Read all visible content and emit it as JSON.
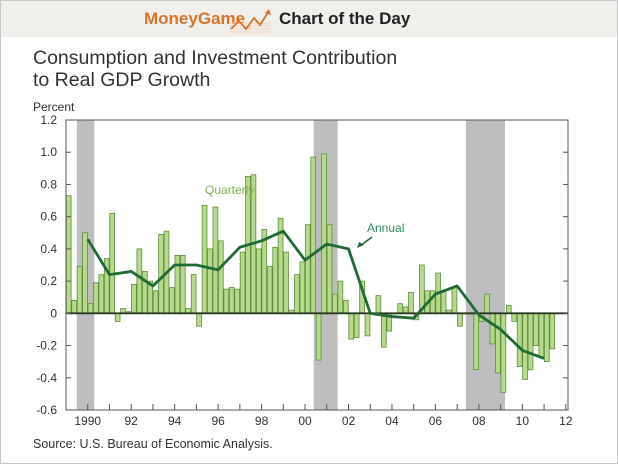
{
  "header": {
    "brand": "MoneyGame",
    "section": "Chart of the Day",
    "brand_color": "#d8732a",
    "logo_icon": "rising-line-chart-icon"
  },
  "footer": {
    "source": "Source: U.S. Bureau of Economic Analysis."
  },
  "chart_data": {
    "type": "bar+line",
    "title_lines": [
      "Consumption and Investment Contribution",
      "to Real GDP Growth"
    ],
    "ylabel": "Percent",
    "ylim": [
      -0.6,
      1.2
    ],
    "yticks": [
      -0.6,
      -0.4,
      -0.2,
      0,
      0.2,
      0.4,
      0.6,
      0.8,
      1.0,
      1.2
    ],
    "ytick_labels": [
      "-0.6",
      "-0.4",
      "-0.2",
      "0",
      "0.2",
      "0.4",
      "0.6",
      "0.8",
      "1.0",
      "1.2"
    ],
    "xlim": [
      1989,
      2012.1
    ],
    "xtick_years": [
      1990,
      1991,
      1992,
      1993,
      1994,
      1995,
      1996,
      1997,
      1998,
      1999,
      2000,
      2001,
      2002,
      2003,
      2004,
      2005,
      2006,
      2007,
      2008,
      2009,
      2010,
      2011,
      2012
    ],
    "xtick_labels": [
      {
        "year": 1990,
        "label": "1990"
      },
      {
        "year": 1992,
        "label": "92"
      },
      {
        "year": 1994,
        "label": "94"
      },
      {
        "year": 1996,
        "label": "96"
      },
      {
        "year": 1998,
        "label": "98"
      },
      {
        "year": 2000,
        "label": "00"
      },
      {
        "year": 2002,
        "label": "02"
      },
      {
        "year": 2004,
        "label": "04"
      },
      {
        "year": 2006,
        "label": "06"
      },
      {
        "year": 2008,
        "label": "08"
      },
      {
        "year": 2010,
        "label": "10"
      },
      {
        "year": 2012,
        "label": "12"
      }
    ],
    "grid": false,
    "recession_shading": [
      [
        1989.5,
        1990.3
      ],
      [
        2000.4,
        2001.5
      ],
      [
        2007.4,
        2009.2
      ]
    ],
    "series": [
      {
        "name": "Quarterly",
        "type": "bar",
        "start": 1989.0,
        "step": 0.25,
        "color": "#b7d98c",
        "edge_color": "#5f8c3c",
        "values": [
          0.73,
          0.08,
          0.29,
          0.5,
          0.06,
          0.19,
          0.24,
          0.34,
          0.62,
          -0.05,
          0.03,
          0.01,
          0.18,
          0.4,
          0.26,
          0.2,
          0.14,
          0.49,
          0.51,
          0.16,
          0.36,
          0.36,
          0.03,
          0.24,
          -0.08,
          0.67,
          0.4,
          0.66,
          0.45,
          0.15,
          0.16,
          0.15,
          0.38,
          0.85,
          0.86,
          0.4,
          0.52,
          0.29,
          0.41,
          0.59,
          0.38,
          0.02,
          0.24,
          0.32,
          0.55,
          0.97,
          -0.29,
          0.99,
          0.55,
          0.12,
          0.2,
          0.08,
          -0.16,
          -0.15,
          0.2,
          -0.14,
          0.0,
          0.11,
          -0.21,
          -0.11,
          0.0,
          0.06,
          0.04,
          0.13,
          -0.04,
          0.3,
          0.14,
          0.14,
          0.25,
          0.14,
          0.02,
          0.16,
          -0.08,
          0.0,
          0.0,
          -0.35,
          -0.05,
          0.12,
          -0.19,
          -0.37,
          -0.49,
          0.05,
          -0.05,
          -0.33,
          -0.41,
          -0.35,
          -0.2,
          -0.27,
          -0.3,
          -0.22
        ]
      },
      {
        "name": "Annual",
        "type": "line",
        "color": "#1f6b35",
        "x": [
          1990,
          1991,
          1992,
          1993,
          1994,
          1995,
          1996,
          1997,
          1998,
          1999,
          2000,
          2001,
          2002,
          2003,
          2004,
          2005,
          2006,
          2007,
          2008,
          2009,
          2010,
          2011
        ],
        "values": [
          0.46,
          0.24,
          0.26,
          0.17,
          0.3,
          0.3,
          0.27,
          0.41,
          0.45,
          0.51,
          0.33,
          0.43,
          0.4,
          0.0,
          -0.02,
          -0.03,
          0.12,
          0.17,
          -0.01,
          -0.1,
          -0.23,
          -0.28
        ]
      }
    ],
    "annotations": [
      {
        "text": "Quarterly",
        "color": "#7cae55"
      },
      {
        "text": "Annual",
        "color": "#2e8a5a"
      }
    ]
  }
}
